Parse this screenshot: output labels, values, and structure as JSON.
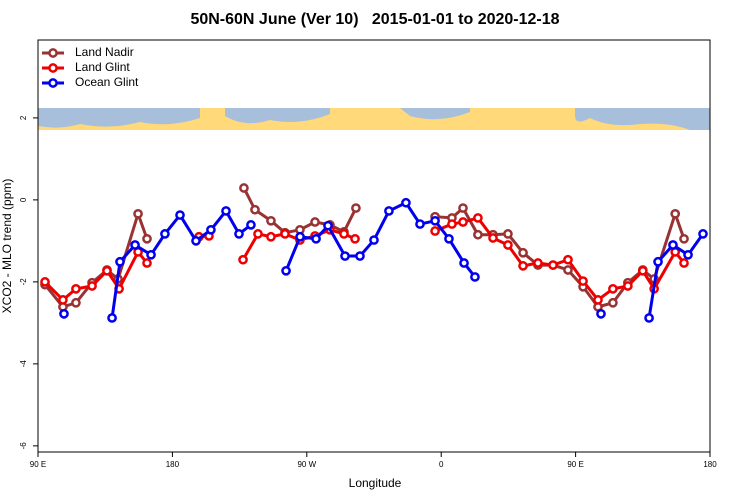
{
  "chart_data": {
    "type": "line",
    "title": "50N-60N June (Ver 10)   2015-01-01 to 2020-12-18",
    "x_label": "Longitude",
    "y_label": "XCO2 - MLO trend (ppm)",
    "xlim": [
      90,
      540
    ],
    "xticks": [
      {
        "value": 90,
        "label": "90 E"
      },
      180,
      {
        "value": 270,
        "label": "90 W"
      },
      {
        "value": 360,
        "label": "0"
      },
      {
        "value": 450,
        "label": "90 E"
      },
      {
        "value": 540,
        "label": "180"
      }
    ],
    "ylim": [
      -6.15,
      3.9
    ],
    "yticks": [
      2,
      0,
      -2,
      -4,
      -6
    ],
    "legend": "top-left",
    "series": [
      {
        "name": "Land Nadir",
        "color": "#993333",
        "x": [
          94.7,
          106.7,
          115.4,
          126.2,
          136.2,
          143.6,
          157,
          163,
          null,
          227.9,
          235.3,
          246,
          255.4,
          265.4,
          275.5,
          285.5,
          294.9,
          302.9,
          null,
          355.9,
          367.2,
          374.6,
          384.6,
          394.7,
          404.7,
          414.8,
          424.8,
          434.9,
          444.9,
          455,
          465,
          475,
          485,
          495,
          502.6,
          516.7,
          522.6
        ],
        "values": [
          -2.07,
          -2.61,
          -2.51,
          -2.02,
          -1.71,
          -1.93,
          -0.34,
          -0.95,
          null,
          0.29,
          -0.24,
          -0.51,
          -0.8,
          -0.73,
          -0.54,
          -0.61,
          -0.78,
          -0.2,
          null,
          -0.41,
          -0.44,
          -0.2,
          -0.85,
          -0.85,
          -0.83,
          -1.29,
          -1.59,
          -1.59,
          -1.71,
          -2.12,
          -2.61,
          -2.51,
          -2.02,
          -1.71,
          -1.93,
          -0.34,
          -0.95
        ]
      },
      {
        "name": "Land Glint",
        "color": "#ee0000",
        "x": [
          94.7,
          106.7,
          115.4,
          126.2,
          136.2,
          144.3,
          157,
          163,
          null,
          197.8,
          204.5,
          null,
          227.3,
          237.3,
          246,
          255.4,
          265.4,
          275.5,
          285.5,
          294.9,
          302.3,
          null,
          355.9,
          367.2,
          374.6,
          384.6,
          394.7,
          404.7,
          414.8,
          424.8,
          434.9,
          444.9,
          455,
          465,
          475,
          485,
          495,
          502.6,
          516.7,
          522.6
        ],
        "values": [
          -2,
          -2.44,
          -2.17,
          -2.1,
          -1.73,
          -2.17,
          -1.27,
          -1.54,
          null,
          -0.9,
          -0.88,
          null,
          -1.46,
          -0.83,
          -0.9,
          -0.83,
          -0.98,
          -0.88,
          -0.73,
          -0.83,
          -0.95,
          null,
          -0.76,
          -0.59,
          -0.54,
          -0.44,
          -0.93,
          -1.1,
          -1.61,
          -1.54,
          -1.59,
          -1.46,
          -1.98,
          -2.44,
          -2.17,
          -2.1,
          -1.73,
          -2.17,
          -1.27,
          -1.54
        ]
      },
      {
        "name": "Ocean Glint",
        "color": "#0000ee",
        "x": [
          107.4,
          null,
          139.6,
          144.9,
          155,
          165.7,
          175,
          185.1,
          195.8,
          205.8,
          215.9,
          224.6,
          232.6,
          null,
          256.1,
          265.5,
          276.2,
          284.2,
          295.6,
          305.6,
          315,
          325,
          336.4,
          345.8,
          355.9,
          365.2,
          375.3,
          382.6,
          null,
          467,
          null,
          499.2,
          505.2,
          515.2,
          525.3,
          535.3
        ],
        "values": [
          -2.78,
          null,
          -2.88,
          -1.51,
          -1.1,
          -1.34,
          -0.83,
          -0.37,
          -1,
          -0.73,
          -0.27,
          -0.83,
          -0.61,
          null,
          -1.73,
          -0.9,
          -0.95,
          -0.63,
          -1.37,
          -1.37,
          -0.98,
          -0.27,
          -0.07,
          -0.59,
          -0.51,
          -0.95,
          -1.54,
          -1.88,
          null,
          -2.78,
          null,
          -2.88,
          -1.51,
          -1.1,
          -1.34,
          -0.83
        ]
      }
    ]
  }
}
